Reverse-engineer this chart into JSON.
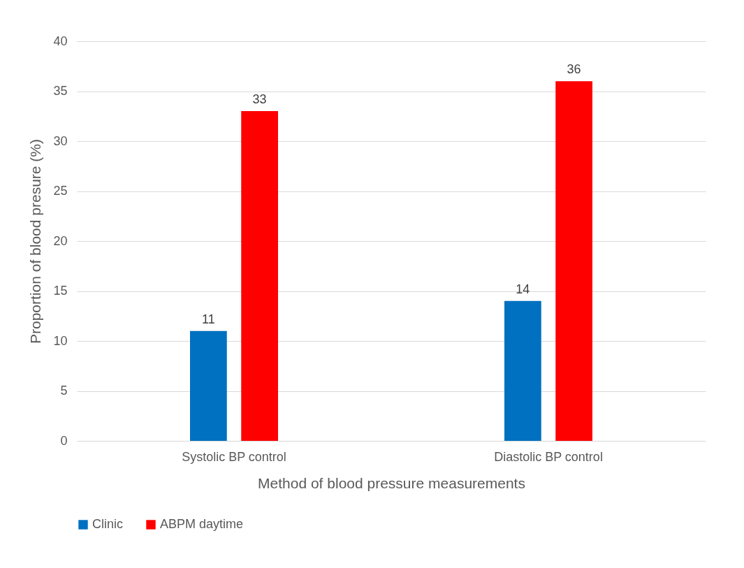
{
  "chart_data": {
    "type": "bar",
    "xlabel": "Method of blood pressure measurements",
    "ylabel": "Proportion of blood presure (%)",
    "categories": [
      "Systolic BP control",
      "Diastolic BP control"
    ],
    "series": [
      {
        "name": "Clinic",
        "color": "#0070c0",
        "values": [
          11,
          14
        ]
      },
      {
        "name": "ABPM daytime",
        "color": "#ff0000",
        "values": [
          33,
          36
        ]
      }
    ],
    "ylim": [
      0,
      40
    ],
    "yticks": [
      0,
      5,
      10,
      15,
      20,
      25,
      30,
      35,
      40
    ],
    "grid": "y",
    "legend": "bottom",
    "data_labels": true
  }
}
